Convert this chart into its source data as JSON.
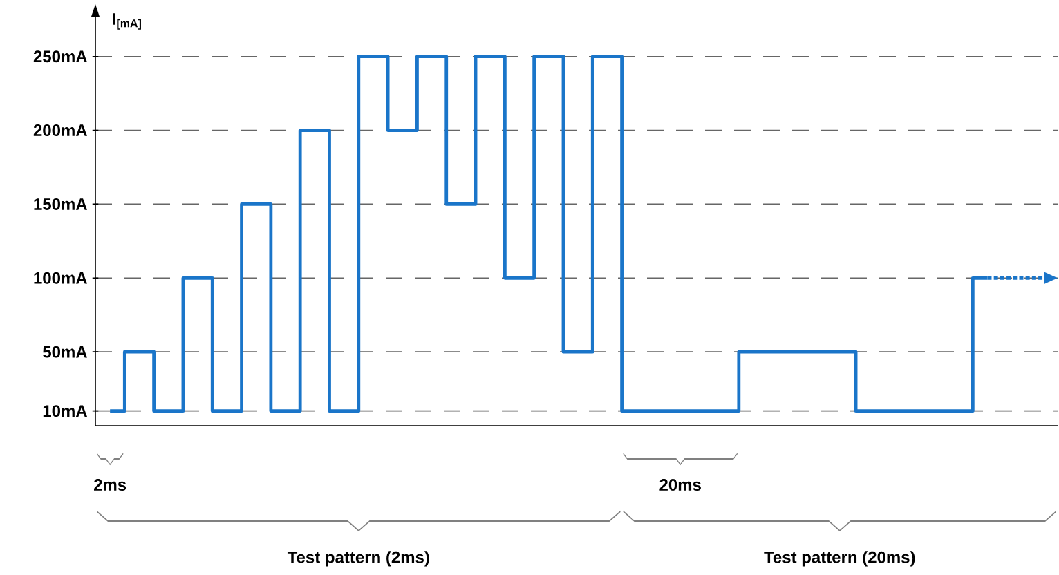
{
  "chart_data": {
    "type": "step",
    "ylabel": "I$_{[mA]}$",
    "ylim": [
      0,
      277
    ],
    "yticks": [
      {
        "value": 10,
        "label": "10mA"
      },
      {
        "value": 50,
        "label": "50mA"
      },
      {
        "value": 100,
        "label": "100mA"
      },
      {
        "value": 150,
        "label": "150mA"
      },
      {
        "value": 200,
        "label": "200mA"
      },
      {
        "value": 250,
        "label": "250mA"
      }
    ],
    "categories": [
      null,
      null,
      null,
      null,
      null,
      null,
      null,
      null,
      null,
      null,
      null,
      null,
      null,
      null,
      null,
      null,
      null,
      null,
      null,
      null,
      null,
      null,
      null,
      null,
      null,
      null,
      null,
      null,
      null,
      null,
      null
    ],
    "grid": "y",
    "marker": "none",
    "annotations": [
      "2ms",
      "20ms",
      "Test pattern (2ms)",
      "Test pattern (20ms)"
    ],
    "series": [
      {
        "color": "#1a75c9",
        "values": [
          10,
          50,
          10,
          100,
          10,
          150,
          10,
          200,
          10,
          250,
          200,
          250,
          150,
          250,
          100,
          250,
          50,
          250,
          10,
          10,
          10,
          10,
          50,
          50,
          50,
          50,
          10,
          10,
          10,
          10,
          100
        ]
      }
    ]
  }
}
